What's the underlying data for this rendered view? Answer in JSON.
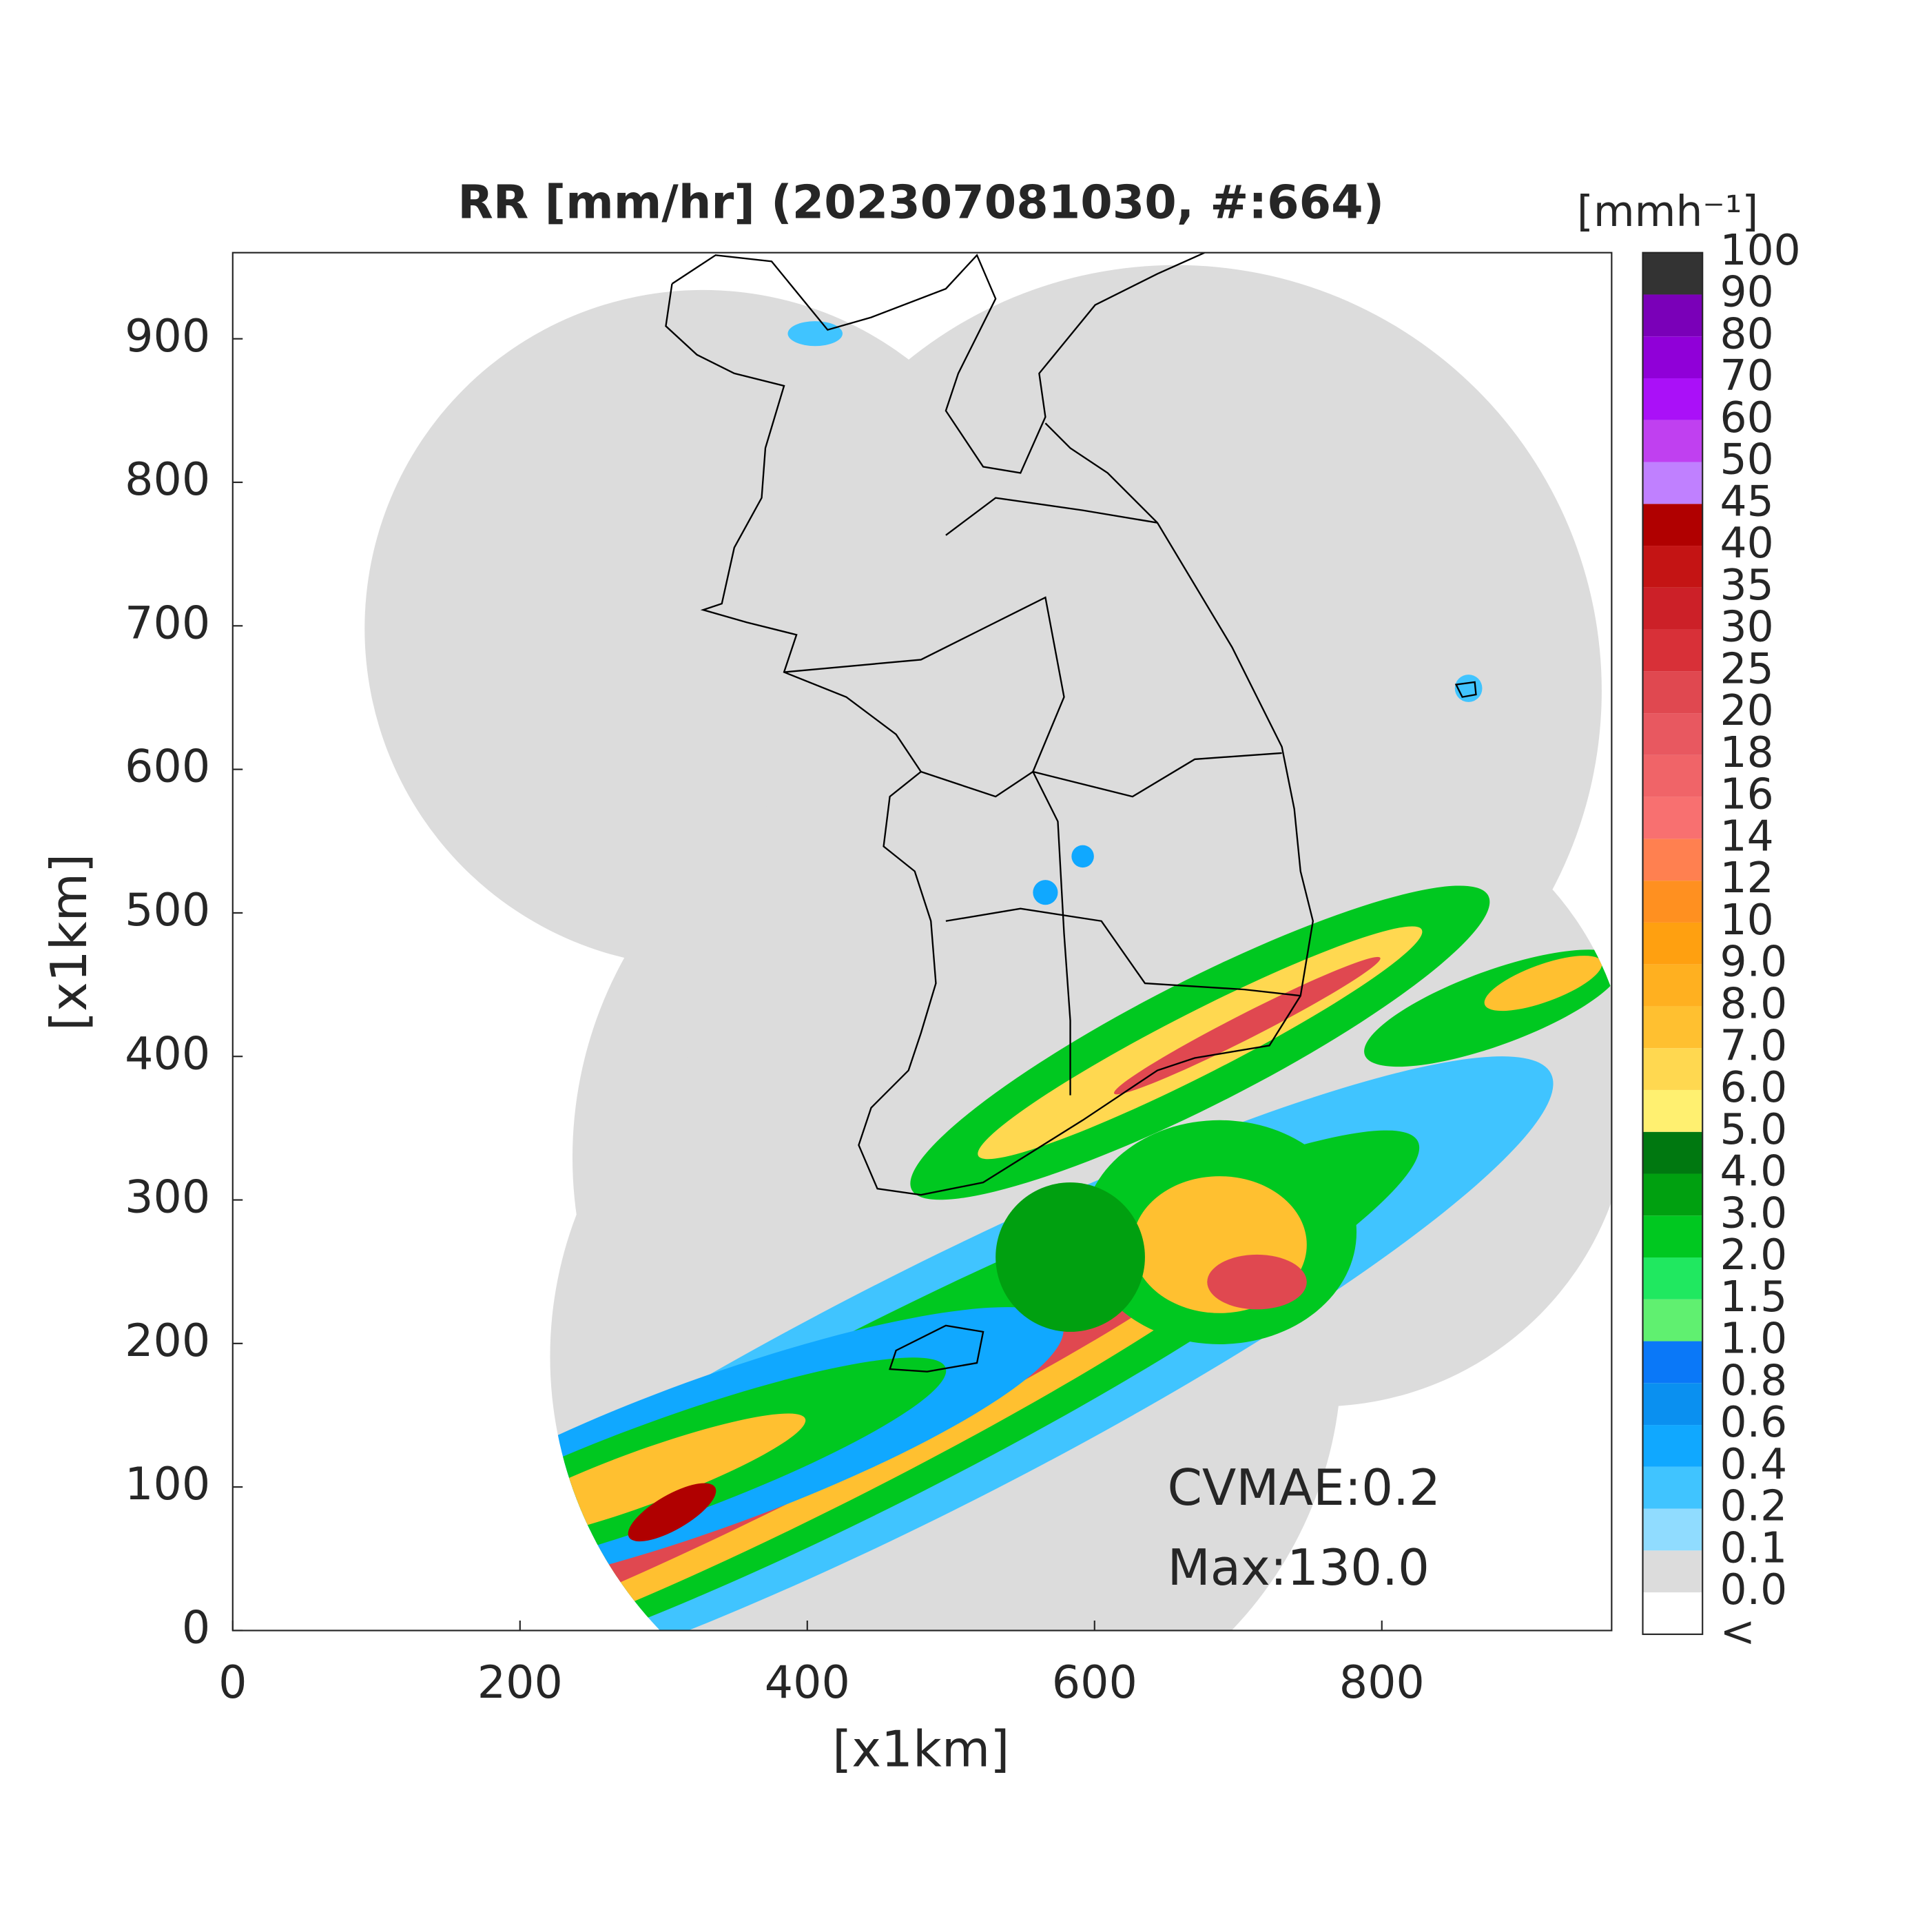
{
  "chart_data": {
    "type": "radar-map",
    "title": "RR [mm/hr] (202307081030, #:664)",
    "xlabel": "[x1km]",
    "ylabel": "[x1km]",
    "xlim": [
      0,
      960
    ],
    "ylim": [
      0,
      960
    ],
    "xticks": [
      0,
      200,
      400,
      600,
      800
    ],
    "yticks": [
      0,
      100,
      200,
      300,
      400,
      500,
      600,
      700,
      800,
      900
    ],
    "annotations": [
      "CVMAE:0.2",
      "Max:130.0"
    ],
    "colorbar": {
      "label": "[mmh⁻¹]",
      "labels": [
        "<",
        "0.0",
        "0.1",
        "0.2",
        "0.4",
        "0.6",
        "0.8",
        "1.0",
        "1.5",
        "2.0",
        "3.0",
        "4.0",
        "5.0",
        "6.0",
        "7.0",
        "8.0",
        "9.0",
        "10",
        "12",
        "14",
        "16",
        "18",
        "20",
        "25",
        "30",
        "35",
        "40",
        "45",
        "50",
        "60",
        "70",
        "80",
        "90",
        "100"
      ],
      "colors": [
        "#ffffff",
        "#dcdcdc",
        "#90dcff",
        "#40c4ff",
        "#10a8ff",
        "#0a90f0",
        "#0a78f8",
        "#60f070",
        "#20e860",
        "#00c820",
        "#00a010",
        "#007810",
        "#fff070",
        "#ffd850",
        "#ffc030",
        "#ffb020",
        "#ffa010",
        "#ff9020",
        "#ff8050",
        "#f87070",
        "#f06468",
        "#e85860",
        "#e04850",
        "#d83038",
        "#cc2028",
        "#c41414",
        "#b00000",
        "#c080ff",
        "#c040f0",
        "#aa10f8",
        "#9000d8",
        "#7a00b8",
        "#333333"
      ]
    }
  }
}
